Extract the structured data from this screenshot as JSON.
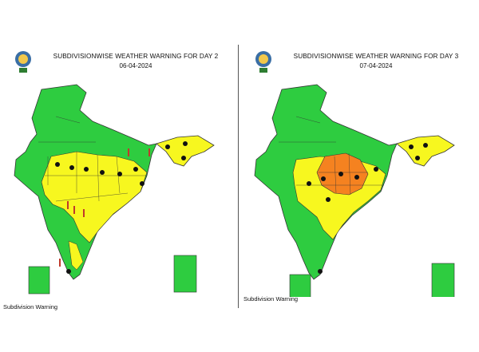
{
  "colors": {
    "green": "#2ecc40",
    "yellow": "#f7f71f",
    "orange": "#f58220",
    "border": "#333333",
    "icon": "#111111",
    "thermo": "#c0392b"
  },
  "panels": [
    {
      "title": "SUBDIVISIONWISE WEATHER WARNING FOR DAY 2",
      "date": "06-04-2024",
      "legend": "Subdivision Warning"
    },
    {
      "title": "SUBDIVISIONWISE WEATHER WARNING FOR DAY 3",
      "date": "07-04-2024",
      "legend": "Subdivision Warning"
    }
  ]
}
